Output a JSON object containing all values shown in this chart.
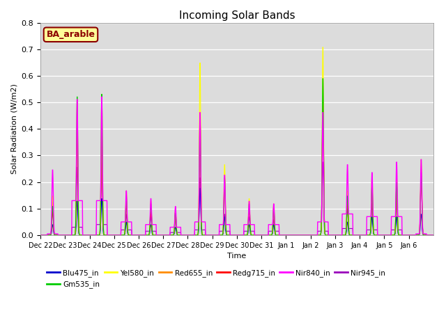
{
  "title": "Incoming Solar Bands",
  "xlabel": "Time",
  "ylabel": "Solar Radiation (W/m2)",
  "annotation_text": "BA_arable",
  "annotation_color": "#8B0000",
  "annotation_bg": "#FFFF99",
  "ylim": [
    0,
    0.8
  ],
  "yticks": [
    0.0,
    0.1,
    0.2,
    0.3,
    0.4,
    0.5,
    0.6,
    0.7,
    0.8
  ],
  "bg_color": "#DCDCDC",
  "series": [
    {
      "name": "Blu475_in",
      "color": "#0000CC"
    },
    {
      "name": "Gm535_in",
      "color": "#00CC00"
    },
    {
      "name": "Yel580_in",
      "color": "#FFFF00"
    },
    {
      "name": "Red655_in",
      "color": "#FF8C00"
    },
    {
      "name": "Redg715_in",
      "color": "#FF0000"
    },
    {
      "name": "Nir840_in",
      "color": "#FF00FF"
    },
    {
      "name": "Nir945_in",
      "color": "#9900BB"
    }
  ],
  "x_tick_labels": [
    "Dec 22",
    "Dec 23",
    "Dec 24",
    "Dec 25",
    "Dec 26",
    "Dec 27",
    "Dec 28",
    "Dec 29",
    "Dec 30",
    "Dec 31",
    "Jan 1",
    "Jan 2",
    "Jan 3",
    "Jan 4",
    "Jan 5",
    "Jan 6"
  ],
  "n_days": 16,
  "points_per_day": 96,
  "peaks": {
    "Yel580_in": [
      0.15,
      0.52,
      0.54,
      0.17,
      0.13,
      0.1,
      0.66,
      0.27,
      0.14,
      0.12,
      0.0,
      0.72,
      0.17,
      0.23,
      0.23,
      0.29
    ],
    "Red655_in": [
      0.12,
      0.42,
      0.42,
      0.14,
      0.11,
      0.09,
      0.47,
      0.22,
      0.12,
      0.1,
      0.0,
      0.52,
      0.14,
      0.19,
      0.2,
      0.25
    ],
    "Redg715_in": [
      0.09,
      0.4,
      0.38,
      0.12,
      0.09,
      0.08,
      0.45,
      0.2,
      0.1,
      0.09,
      0.0,
      0.51,
      0.13,
      0.17,
      0.18,
      0.23
    ],
    "Nir840_in": [
      0.25,
      0.52,
      0.53,
      0.17,
      0.14,
      0.11,
      0.47,
      0.23,
      0.13,
      0.12,
      0.0,
      0.47,
      0.27,
      0.24,
      0.28,
      0.29
    ],
    "Gm535_in": [
      0.11,
      0.53,
      0.54,
      0.15,
      0.12,
      0.09,
      0.46,
      0.22,
      0.12,
      0.11,
      0.0,
      0.6,
      0.15,
      0.19,
      0.2,
      0.24
    ],
    "Blu475_in": [
      0.04,
      0.13,
      0.14,
      0.05,
      0.04,
      0.03,
      0.18,
      0.07,
      0.04,
      0.04,
      0.0,
      0.6,
      0.05,
      0.07,
      0.07,
      0.08
    ],
    "Nir945_in": [
      0.13,
      0.26,
      0.28,
      0.08,
      0.07,
      0.06,
      0.22,
      0.08,
      0.07,
      0.06,
      0.0,
      0.28,
      0.1,
      0.12,
      0.14,
      0.24
    ]
  },
  "nir840_base": [
    0.005,
    0.13,
    0.13,
    0.05,
    0.04,
    0.03,
    0.05,
    0.04,
    0.04,
    0.04,
    0.0,
    0.05,
    0.08,
    0.07,
    0.07,
    0.005
  ],
  "nir945_base": [
    0.003,
    0.03,
    0.04,
    0.02,
    0.015,
    0.01,
    0.02,
    0.015,
    0.015,
    0.015,
    0.0,
    0.015,
    0.025,
    0.02,
    0.02,
    0.003
  ]
}
